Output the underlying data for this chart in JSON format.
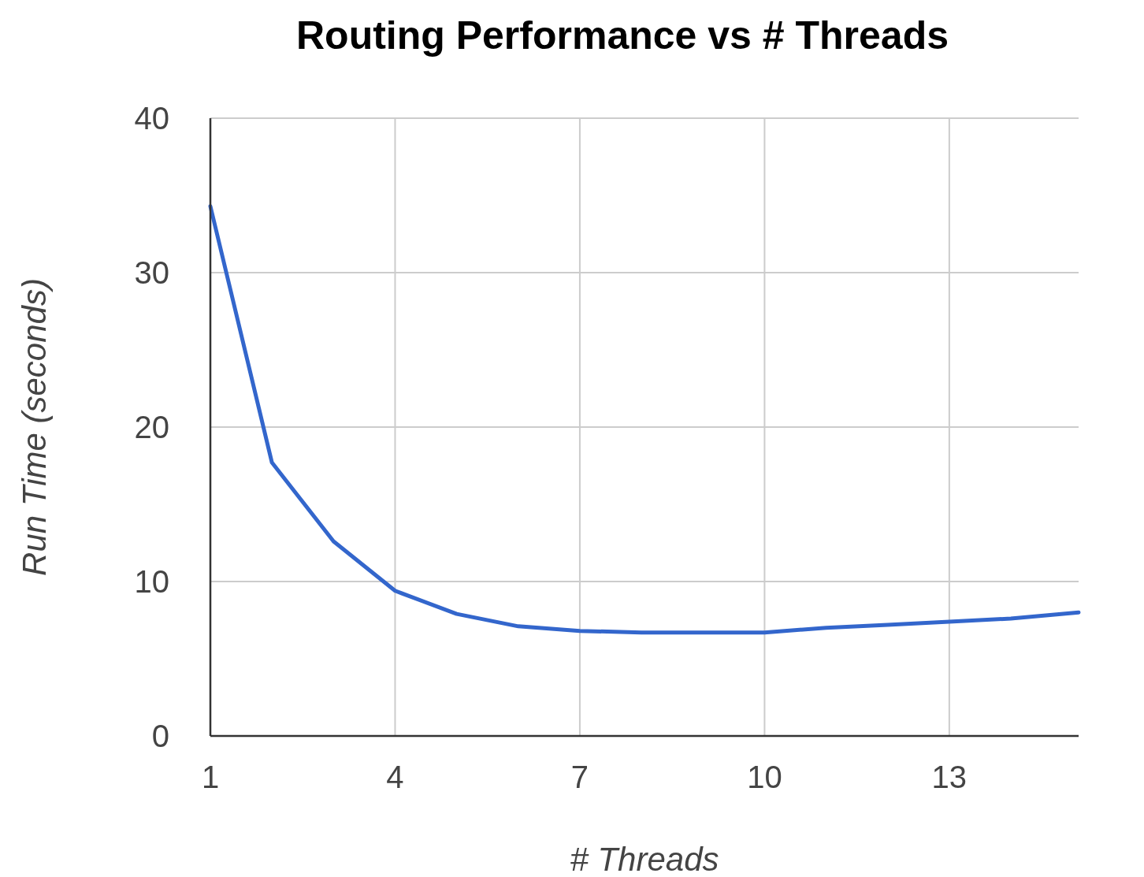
{
  "chart_data": {
    "type": "line",
    "title": "Routing Performance vs # Threads",
    "xlabel": "# Threads",
    "ylabel": "Run Time (seconds)",
    "x": [
      1,
      2,
      3,
      4,
      5,
      6,
      7,
      8,
      9,
      10,
      11,
      12,
      13,
      14,
      15.1
    ],
    "series": [
      {
        "color": "#3366cc",
        "values": [
          34.3,
          17.7,
          12.6,
          9.4,
          7.9,
          7.1,
          6.8,
          6.7,
          6.7,
          6.7,
          7.0,
          7.2,
          7.4,
          7.6,
          8.0
        ]
      }
    ],
    "xlim": [
      1,
      15.1
    ],
    "xticks": [
      1,
      4,
      7,
      10,
      13
    ],
    "ylim": [
      0,
      40
    ],
    "yticks": [
      0,
      10,
      20,
      30,
      40
    ],
    "grid": true
  }
}
